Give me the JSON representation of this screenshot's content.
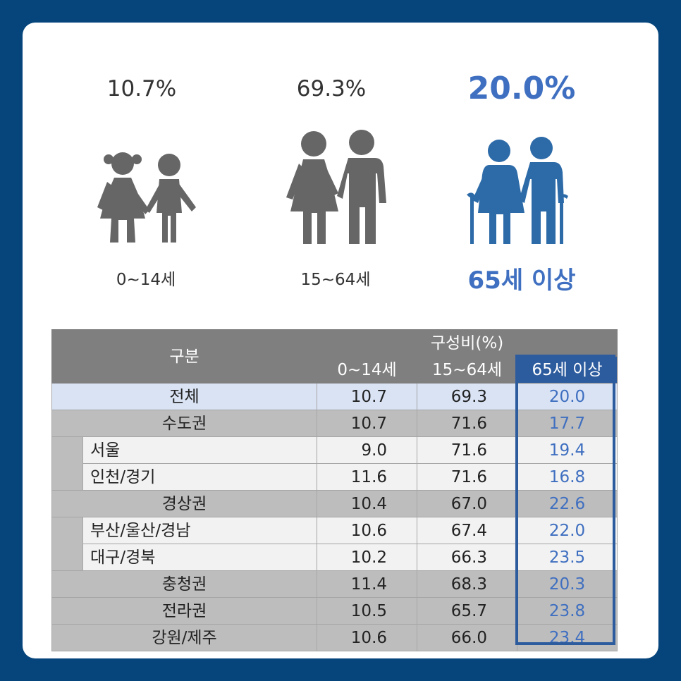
{
  "stats": [
    {
      "percent": "10.7%",
      "age_label": "0~14세"
    },
    {
      "percent": "69.3%",
      "age_label": "15~64세"
    },
    {
      "percent": "20.0%",
      "age_label": "65세 이상"
    }
  ],
  "colors": {
    "background": "#05457c",
    "highlight": "#3f6fc0",
    "figure_gray": "#666666",
    "figure_blue": "#2c6aa8"
  },
  "table": {
    "header_category": "구분",
    "header_group": "구성비(%)",
    "columns": [
      "0~14세",
      "15~64세",
      "65세 이상"
    ],
    "rows": [
      {
        "name": "전체",
        "v1": "10.7",
        "v2": "69.3",
        "v3": "20.0"
      },
      {
        "name": "수도권",
        "v1": "10.7",
        "v2": "71.6",
        "v3": "17.7"
      },
      {
        "name": "서울",
        "v1": "9.0",
        "v2": "71.6",
        "v3": "19.4"
      },
      {
        "name": "인천/경기",
        "v1": "11.6",
        "v2": "71.6",
        "v3": "16.8"
      },
      {
        "name": "경상권",
        "v1": "10.4",
        "v2": "67.0",
        "v3": "22.6"
      },
      {
        "name": "부산/울산/경남",
        "v1": "10.6",
        "v2": "67.4",
        "v3": "22.0"
      },
      {
        "name": "대구/경북",
        "v1": "10.2",
        "v2": "66.3",
        "v3": "23.5"
      },
      {
        "name": "충청권",
        "v1": "11.4",
        "v2": "68.3",
        "v3": "20.3"
      },
      {
        "name": "전라권",
        "v1": "10.5",
        "v2": "65.7",
        "v3": "23.8"
      },
      {
        "name": "강원/제주",
        "v1": "10.6",
        "v2": "66.0",
        "v3": "23.4"
      }
    ]
  },
  "chart_data": {
    "type": "table",
    "categories": [
      "0~14세",
      "15~64세",
      "65세 이상"
    ],
    "headline_values": [
      10.7,
      69.3,
      20.0
    ],
    "series": [
      {
        "name": "전체",
        "values": [
          10.7,
          69.3,
          20.0
        ]
      },
      {
        "name": "수도권",
        "values": [
          10.7,
          71.6,
          17.7
        ]
      },
      {
        "name": "서울",
        "values": [
          9.0,
          71.6,
          19.4
        ]
      },
      {
        "name": "인천/경기",
        "values": [
          11.6,
          71.6,
          16.8
        ]
      },
      {
        "name": "경상권",
        "values": [
          10.4,
          67.0,
          22.6
        ]
      },
      {
        "name": "부산/울산/경남",
        "values": [
          10.6,
          67.4,
          22.0
        ]
      },
      {
        "name": "대구/경북",
        "values": [
          10.2,
          66.3,
          23.5
        ]
      },
      {
        "name": "충청권",
        "values": [
          11.4,
          68.3,
          20.3
        ]
      },
      {
        "name": "전라권",
        "values": [
          10.5,
          65.7,
          23.8
        ]
      },
      {
        "name": "강원/제주",
        "values": [
          10.6,
          66.0,
          23.4
        ]
      }
    ]
  }
}
